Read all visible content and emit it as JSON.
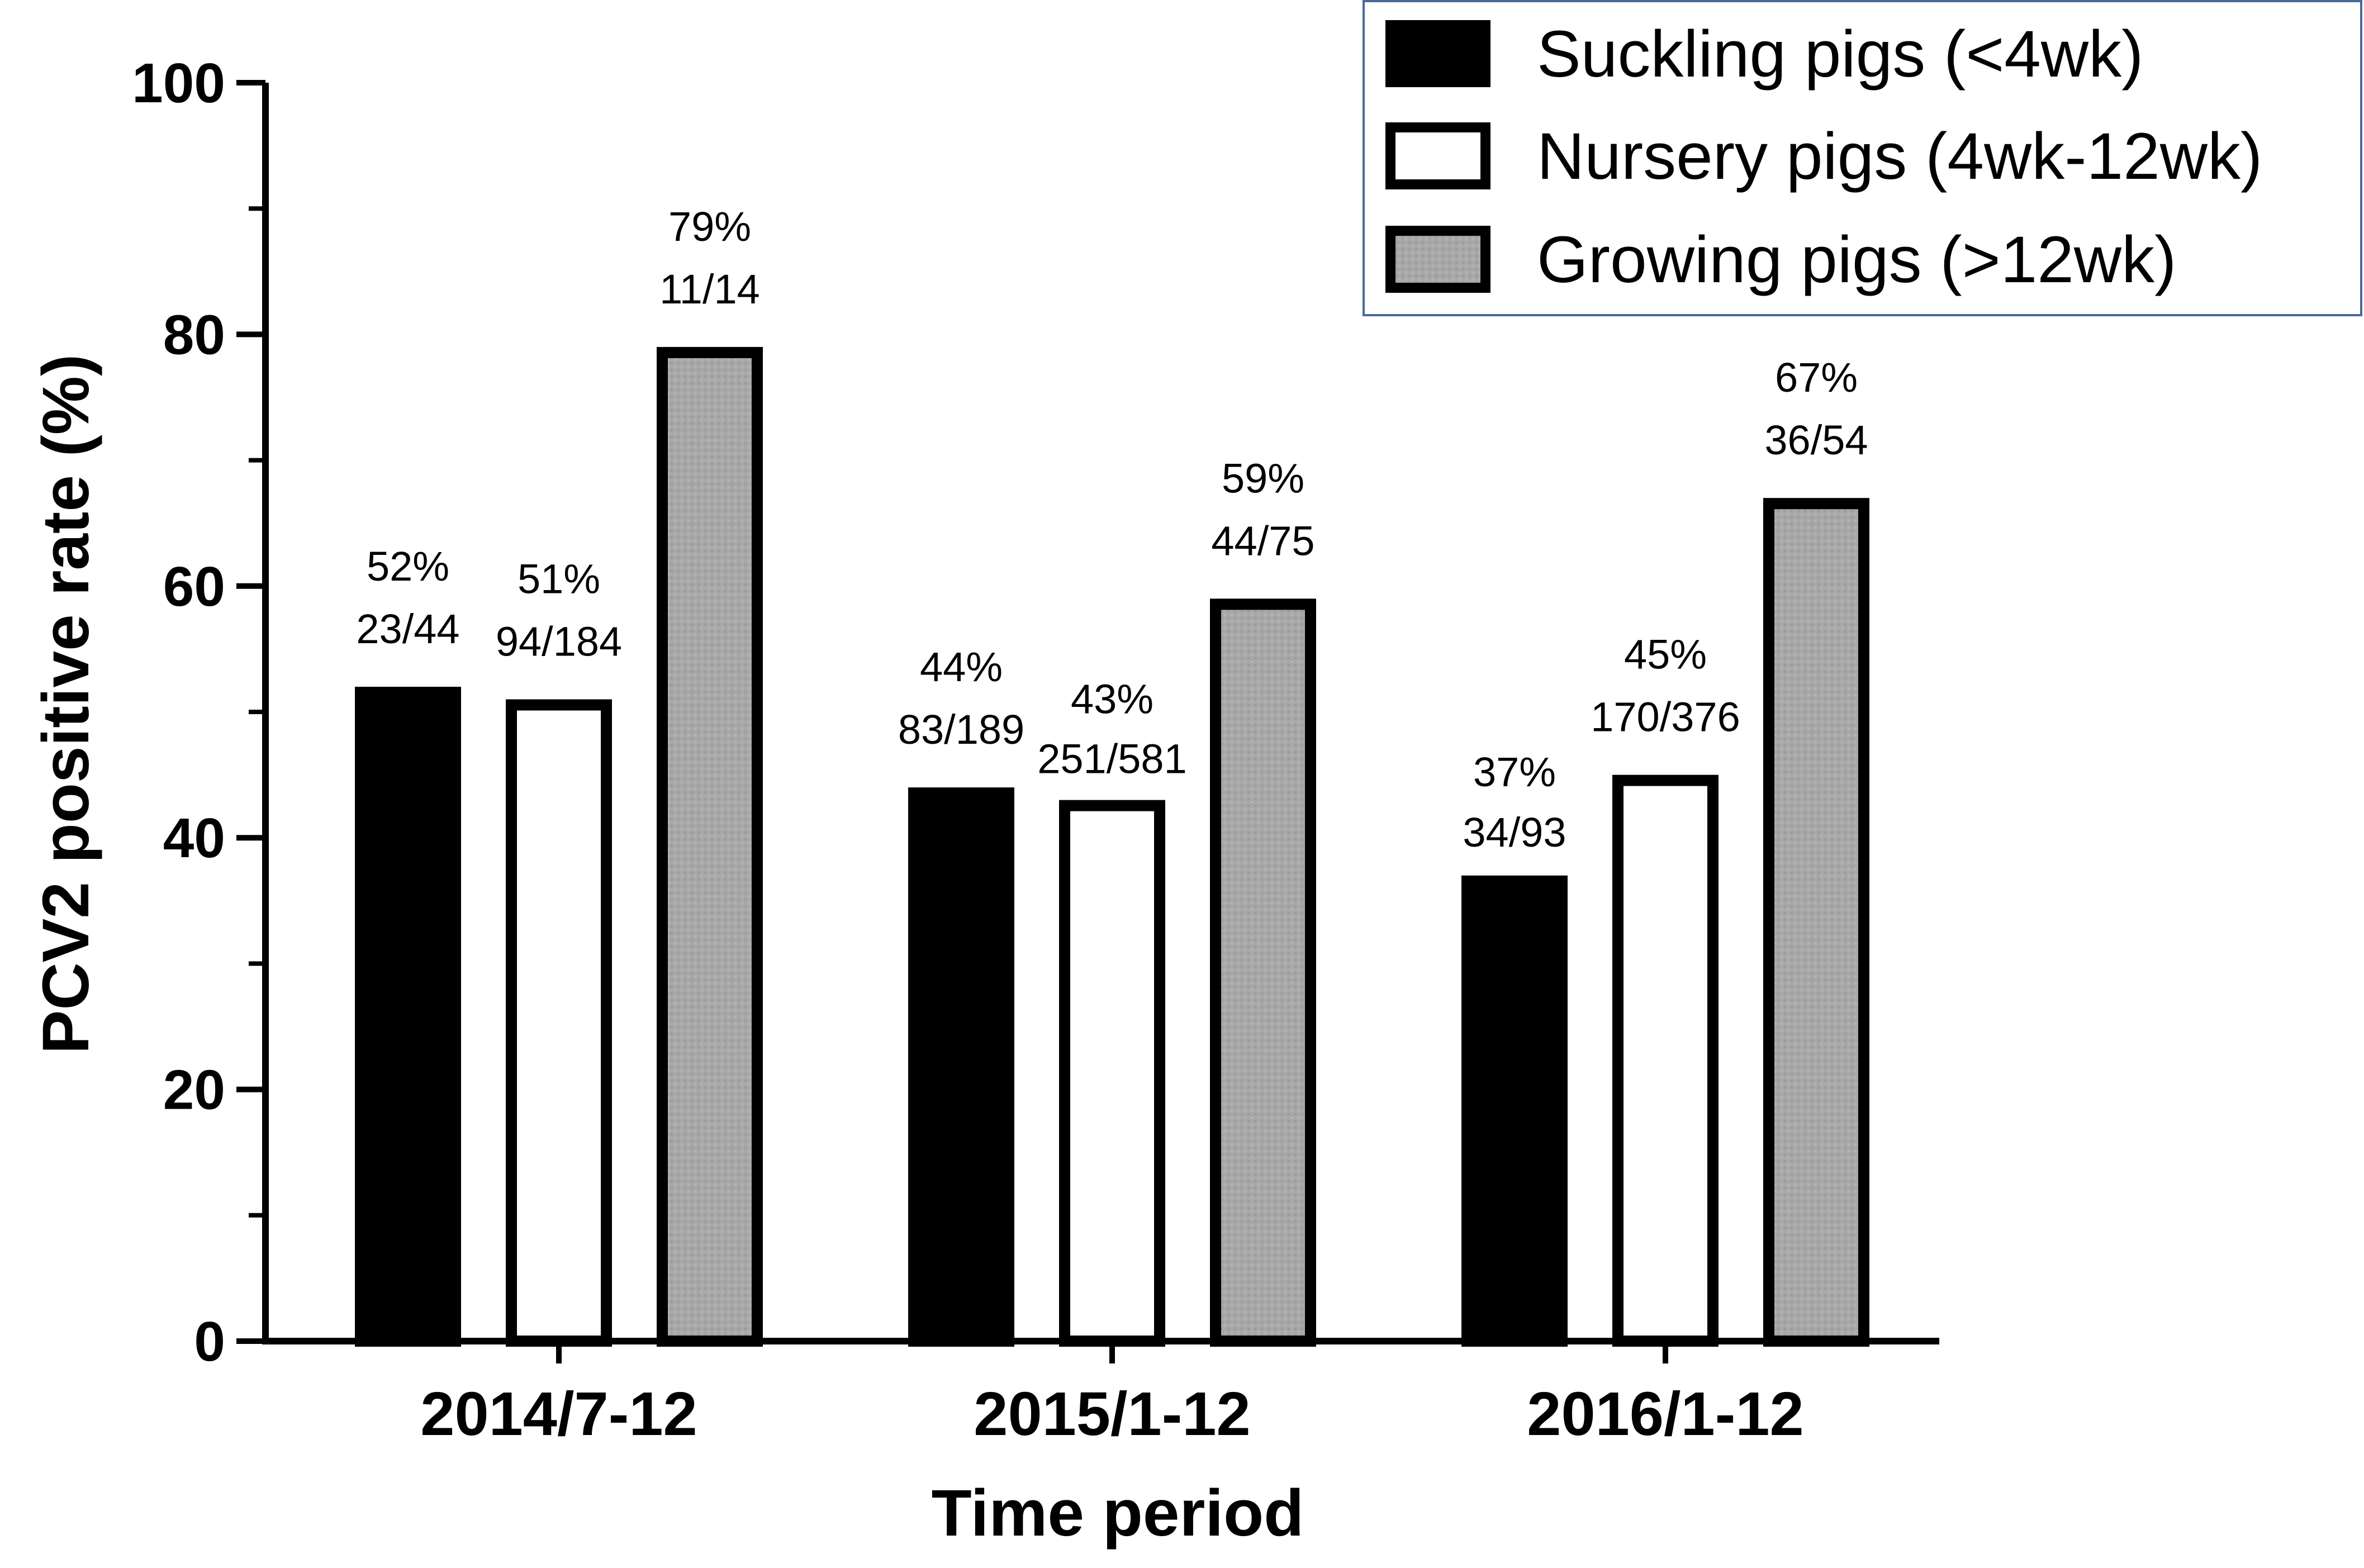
{
  "chart_data": {
    "type": "bar",
    "xlabel": "Time period",
    "ylabel": "PCV2 positive rate (%)",
    "ylim": [
      0,
      100
    ],
    "yticks": [
      0,
      20,
      40,
      60,
      80,
      100
    ],
    "grid": false,
    "legend_position": "top-right",
    "categories": [
      "2014/7-12",
      "2015/1-12",
      "2016/1-12"
    ],
    "series": [
      {
        "name": "Suckling pigs (<4wk)",
        "fill": "#000000",
        "values": [
          52,
          44,
          37
        ],
        "value_labels": [
          "52%",
          "44%",
          "37%"
        ],
        "count_labels": [
          "23/44",
          "83/189",
          "34/93"
        ]
      },
      {
        "name": "Nursery pigs (4wk-12wk)",
        "fill": "#ffffff",
        "values": [
          51,
          43,
          45
        ],
        "value_labels": [
          "51%",
          "43%",
          "45%"
        ],
        "count_labels": [
          "94/184",
          "251/581",
          "170/376"
        ]
      },
      {
        "name": "Growing pigs (>12wk)",
        "fill": "#a6a6a6",
        "values": [
          79,
          59,
          67
        ],
        "value_labels": [
          "79%",
          "59%",
          "67%"
        ],
        "count_labels": [
          "11/14",
          "44/75",
          "36/54"
        ]
      }
    ]
  }
}
